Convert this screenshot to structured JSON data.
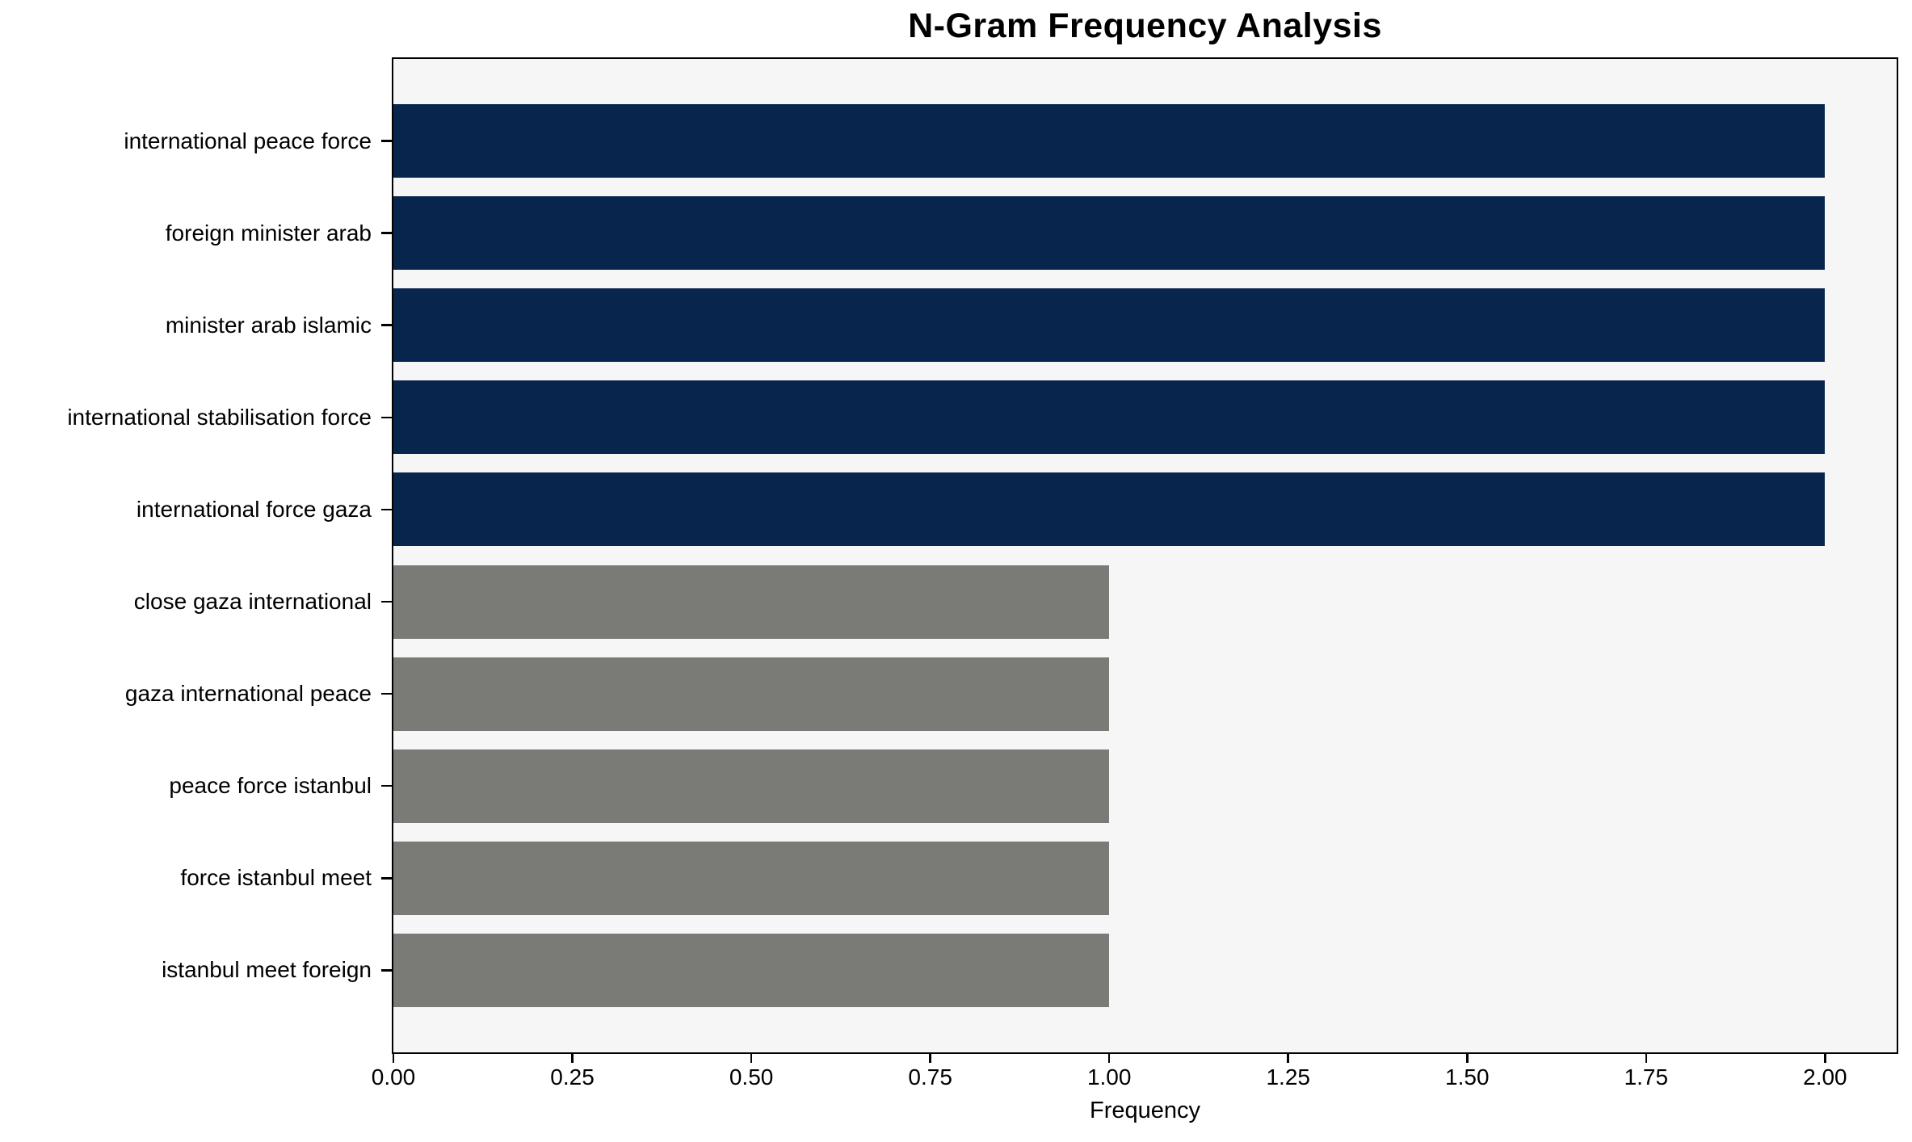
{
  "chart_data": {
    "type": "bar",
    "orientation": "horizontal",
    "title": "N-Gram Frequency Analysis",
    "xlabel": "Frequency",
    "ylabel": "",
    "categories": [
      "international peace force",
      "foreign minister arab",
      "minister arab islamic",
      "international stabilisation force",
      "international force gaza",
      "close gaza international",
      "gaza international peace",
      "peace force istanbul",
      "force istanbul meet",
      "istanbul meet foreign"
    ],
    "values": [
      2,
      2,
      2,
      2,
      2,
      1,
      1,
      1,
      1,
      1
    ],
    "bar_colors": [
      "#08254d",
      "#08254d",
      "#08254d",
      "#08254d",
      "#08254d",
      "#7a7a76",
      "#7a7a76",
      "#7a7a76",
      "#7a7a76",
      "#7a7a76"
    ],
    "xlim": [
      0,
      2.1
    ],
    "x_ticks": [
      0,
      0.25,
      0.5,
      0.75,
      1,
      1.25,
      1.5,
      1.75,
      2
    ],
    "x_tick_labels": [
      "0.00",
      "0.25",
      "0.50",
      "0.75",
      "1.00",
      "1.25",
      "1.50",
      "1.75",
      "2.00"
    ],
    "plot_background": "#f6f6f6",
    "figure_background": "#ffffff",
    "grid": false,
    "legend": false
  }
}
